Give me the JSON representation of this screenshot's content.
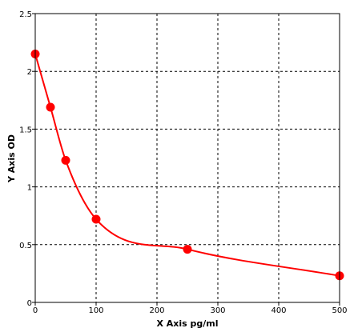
{
  "chart_data": {
    "type": "scatter",
    "title": "",
    "xlabel": "X Axis pg/ml",
    "ylabel": "Y Axis OD",
    "xlim": [
      0,
      500
    ],
    "ylim": [
      0,
      2.5
    ],
    "x_ticks": [
      "0",
      "100",
      "200",
      "300",
      "400",
      "500"
    ],
    "y_ticks": [
      "0",
      "0.5",
      "1",
      "1.5",
      "2",
      "2.5"
    ],
    "grid": true,
    "grid_style": "dashed",
    "legend": "none",
    "colors": {
      "series": "#ff0000",
      "grid": "#000000",
      "frame": "#000000",
      "background": "#ffffff"
    },
    "series": [
      {
        "marker": "circle",
        "fit": "smooth-curve",
        "points": [
          {
            "x": 0,
            "y": 2.15
          },
          {
            "x": 25,
            "y": 1.69
          },
          {
            "x": 50,
            "y": 1.23
          },
          {
            "x": 100,
            "y": 0.72
          },
          {
            "x": 250,
            "y": 0.46
          },
          {
            "x": 500,
            "y": 0.23
          }
        ]
      }
    ]
  }
}
